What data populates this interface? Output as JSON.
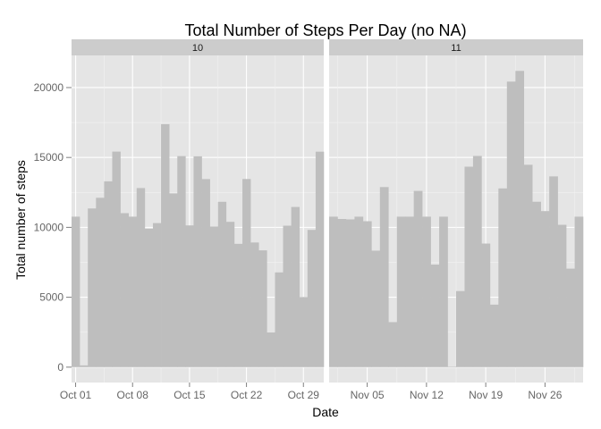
{
  "chart_data": {
    "type": "bar",
    "title": "Total Number of Steps Per Day (no NA)",
    "xlabel": "Date",
    "ylabel": "Total number of steps",
    "ylim": [
      -1100,
      22300
    ],
    "yticks": [
      0,
      5000,
      10000,
      15000,
      20000
    ],
    "grid": true,
    "legend": "none",
    "colors": {
      "bar": "#bebebe",
      "panel_bg": "#e5e5e5",
      "strip_bg": "#cccccc",
      "grid_major": "#ffffff",
      "grid_minor": "#f2f2f2"
    },
    "facets": [
      {
        "label": "10",
        "x": [
          "2012-10-01",
          "2012-10-02",
          "2012-10-03",
          "2012-10-04",
          "2012-10-05",
          "2012-10-06",
          "2012-10-07",
          "2012-10-08",
          "2012-10-09",
          "2012-10-10",
          "2012-10-11",
          "2012-10-12",
          "2012-10-13",
          "2012-10-14",
          "2012-10-15",
          "2012-10-16",
          "2012-10-17",
          "2012-10-18",
          "2012-10-19",
          "2012-10-20",
          "2012-10-21",
          "2012-10-22",
          "2012-10-23",
          "2012-10-24",
          "2012-10-25",
          "2012-10-26",
          "2012-10-27",
          "2012-10-28",
          "2012-10-29",
          "2012-10-30",
          "2012-10-31"
        ],
        "values": [
          10766,
          126,
          11352,
          12116,
          13294,
          15420,
          11015,
          10766,
          12811,
          9900,
          10304,
          17382,
          12426,
          15098,
          10139,
          15084,
          13452,
          10056,
          11829,
          10395,
          8821,
          13460,
          8918,
          8355,
          2492,
          6778,
          10119,
          11458,
          5018,
          9819,
          15414
        ],
        "xticks": [
          "Oct 01",
          "Oct 08",
          "Oct 15",
          "Oct 22",
          "Oct 29"
        ]
      },
      {
        "label": "11",
        "x": [
          "2012-11-01",
          "2012-11-02",
          "2012-11-03",
          "2012-11-04",
          "2012-11-05",
          "2012-11-06",
          "2012-11-07",
          "2012-11-08",
          "2012-11-09",
          "2012-11-10",
          "2012-11-11",
          "2012-11-12",
          "2012-11-13",
          "2012-11-14",
          "2012-11-15",
          "2012-11-16",
          "2012-11-17",
          "2012-11-18",
          "2012-11-19",
          "2012-11-20",
          "2012-11-21",
          "2012-11-22",
          "2012-11-23",
          "2012-11-24",
          "2012-11-25",
          "2012-11-26",
          "2012-11-27",
          "2012-11-28",
          "2012-11-29",
          "2012-11-30"
        ],
        "values": [
          10766,
          10600,
          10571,
          10766,
          10439,
          8334,
          12883,
          3219,
          10766,
          10766,
          12608,
          10765,
          7336,
          10766,
          41,
          5441,
          14339,
          15110,
          8841,
          4472,
          12787,
          20427,
          21194,
          14478,
          11834,
          11162,
          13646,
          10183,
          7047,
          10766
        ],
        "xticks": [
          "Nov 05",
          "Nov 12",
          "Nov 19",
          "Nov 26"
        ]
      }
    ]
  }
}
